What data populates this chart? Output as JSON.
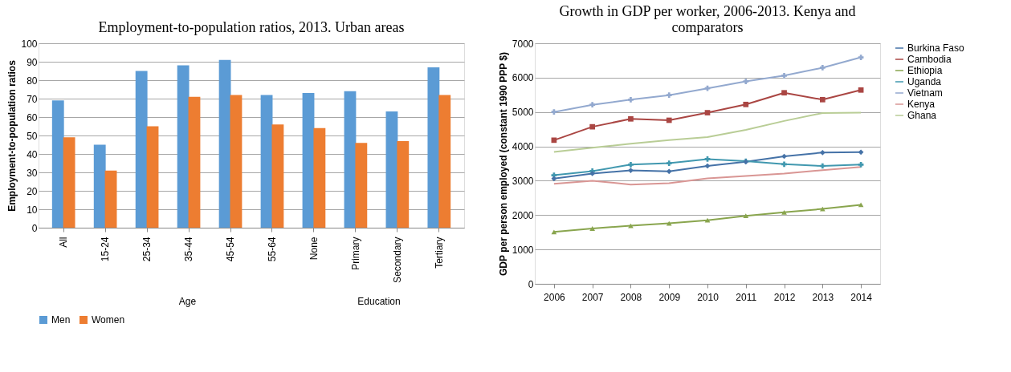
{
  "chart_data": [
    {
      "type": "bar",
      "title": "Employment-to-population ratios, 2013. Urban areas",
      "ylabel": "Employment-to-population ratios",
      "categories": [
        "All",
        "15-24",
        "25-34",
        "35-44",
        "45-54",
        "55-64",
        "None",
        "Primary",
        "Secondary",
        "Tertiary"
      ],
      "series": [
        {
          "name": "Men",
          "color": "#5b9bd5",
          "values": [
            69,
            45,
            85,
            88,
            91,
            72,
            73,
            74,
            63,
            87
          ]
        },
        {
          "name": "Women",
          "color": "#ed7d31",
          "values": [
            49,
            31,
            55,
            71,
            72,
            56,
            54,
            46,
            47,
            72
          ]
        }
      ],
      "annotations": [
        "Age",
        "Education"
      ],
      "ylim": [
        0,
        100
      ],
      "yticks": [
        0,
        10,
        20,
        30,
        40,
        50,
        60,
        70,
        80,
        90,
        100
      ],
      "grid": "y",
      "legend": "bottom"
    },
    {
      "type": "line",
      "title": "Growth in GDP per worker, 2006-2013. Kenya and comparators",
      "ylabel": "GDP per person employed (constant 1990 PPP $)",
      "categories": [
        "2006",
        "2007",
        "2008",
        "2009",
        "2010",
        "2011",
        "2012",
        "2013",
        "2014"
      ],
      "series": [
        {
          "name": "Burkina Faso",
          "color": "#4572a7",
          "marker": "diamond",
          "values": [
            3060,
            3210,
            3300,
            3270,
            3430,
            3550,
            3710,
            3820,
            3830
          ]
        },
        {
          "name": "Cambodia",
          "color": "#aa4643",
          "marker": "square",
          "values": [
            4180,
            4570,
            4800,
            4760,
            4980,
            5220,
            5560,
            5360,
            5640
          ]
        },
        {
          "name": "Ethiopia",
          "color": "#89a54e",
          "marker": "triangle",
          "values": [
            1510,
            1610,
            1690,
            1760,
            1850,
            1980,
            2080,
            2180,
            2300
          ]
        },
        {
          "name": "Uganda",
          "color": "#4198af",
          "marker": "cross",
          "values": [
            3160,
            3280,
            3470,
            3510,
            3630,
            3570,
            3480,
            3430,
            3470
          ]
        },
        {
          "name": "Vietnam",
          "color": "#93a9cf",
          "marker": "cross",
          "values": [
            5000,
            5210,
            5360,
            5490,
            5690,
            5890,
            6060,
            6290,
            6590
          ]
        },
        {
          "name": "Kenya",
          "color": "#d99694",
          "marker": "none",
          "values": [
            2910,
            3000,
            2890,
            2930,
            3070,
            3140,
            3210,
            3310,
            3400
          ]
        },
        {
          "name": "Ghana",
          "color": "#b9cd96",
          "marker": "none",
          "values": [
            3840,
            3960,
            4080,
            4180,
            4270,
            4480,
            4740,
            4970,
            4980
          ]
        }
      ],
      "ylim": [
        0,
        7000
      ],
      "yticks": [
        0,
        1000,
        2000,
        3000,
        4000,
        5000,
        6000,
        7000
      ],
      "grid": "y",
      "legend": "right"
    }
  ]
}
